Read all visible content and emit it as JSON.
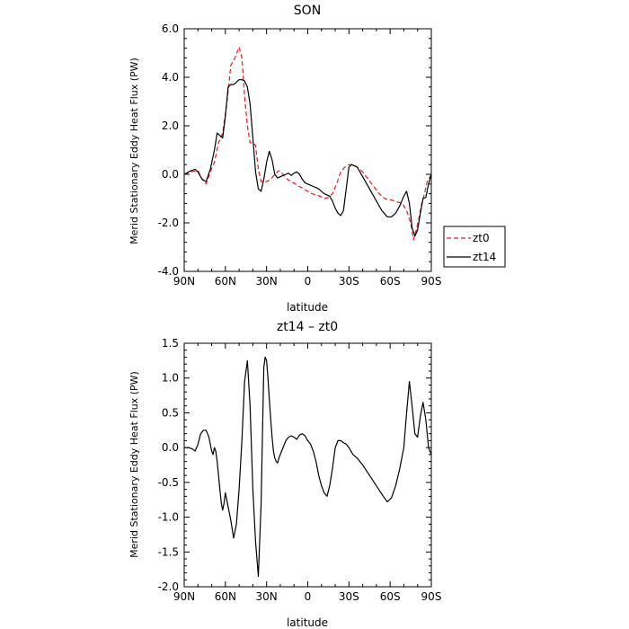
{
  "colors": {
    "zt0": "#e41a1c",
    "zt14": "#000000",
    "frame": "#000000"
  },
  "chart_data": [
    {
      "type": "line",
      "title": "SON",
      "xlabel": "latitude",
      "ylabel": "Merid Stationary Eddy Heat Flux (PW)",
      "xlim": [
        90,
        -90
      ],
      "ylim": [
        -4,
        6
      ],
      "xticks": [
        90,
        60,
        30,
        0,
        -30,
        -60,
        -90
      ],
      "xtick_labels": [
        "90N",
        "60N",
        "30N",
        "0",
        "30S",
        "60S",
        "90S"
      ],
      "yticks": [
        -4,
        -2,
        0,
        2,
        4,
        6
      ],
      "ytick_labels": [
        "-4.0",
        "-2.0",
        "0.0",
        "2.0",
        "4.0",
        "6.0"
      ],
      "legend": {
        "position": "right",
        "entries": [
          "zt0",
          "zt14"
        ]
      },
      "series": [
        {
          "name": "zt0",
          "style": "dashed",
          "x": [
            90,
            85,
            80,
            77,
            74,
            71,
            68,
            65,
            62,
            59,
            56,
            53,
            50,
            48,
            46,
            44,
            42,
            40,
            38,
            36,
            34,
            32,
            30,
            27,
            24,
            21,
            18,
            15,
            12,
            9,
            6,
            3,
            0,
            -3,
            -6,
            -9,
            -12,
            -15,
            -18,
            -21,
            -24,
            -27,
            -30,
            -33,
            -36,
            -40,
            -44,
            -48,
            -52,
            -56,
            -60,
            -63,
            -66,
            -69,
            -72,
            -75,
            -77,
            -79,
            -81,
            -83,
            -85,
            -87,
            -90
          ],
          "values": [
            0.0,
            0.1,
            0.15,
            -0.2,
            -0.4,
            0.1,
            0.5,
            1.3,
            1.7,
            2.9,
            4.5,
            4.8,
            5.25,
            4.8,
            3.2,
            2.0,
            1.3,
            1.3,
            1.2,
            0.2,
            -0.3,
            -0.3,
            -0.3,
            -0.2,
            0.0,
            0.15,
            0.0,
            -0.2,
            -0.3,
            -0.4,
            -0.5,
            -0.6,
            -0.7,
            -0.8,
            -0.85,
            -0.9,
            -1.0,
            -0.95,
            -0.8,
            -0.4,
            0.1,
            0.3,
            0.4,
            0.4,
            0.3,
            0.1,
            -0.2,
            -0.5,
            -0.8,
            -1.0,
            -1.05,
            -1.1,
            -1.15,
            -1.2,
            -1.5,
            -2.0,
            -2.7,
            -2.3,
            -1.8,
            -1.2,
            -0.8,
            -0.3,
            0.0
          ]
        },
        {
          "name": "zt14",
          "style": "solid",
          "x": [
            90,
            85,
            82,
            80,
            77,
            74,
            71,
            68,
            66,
            64,
            62,
            60,
            58,
            56,
            54,
            52,
            50,
            48,
            46,
            44,
            42,
            40,
            38,
            36,
            34,
            32,
            30,
            28,
            26,
            24,
            22,
            20,
            18,
            16,
            14,
            12,
            10,
            8,
            6,
            4,
            2,
            0,
            -2,
            -4,
            -6,
            -8,
            -10,
            -12,
            -14,
            -16,
            -18,
            -20,
            -22,
            -24,
            -26,
            -28,
            -30,
            -32,
            -34,
            -36,
            -38,
            -42,
            -46,
            -50,
            -54,
            -58,
            -61,
            -64,
            -67,
            -70,
            -72,
            -74,
            -76,
            -78,
            -80,
            -82,
            -84,
            -86,
            -88,
            -90
          ],
          "values": [
            0.0,
            0.15,
            0.2,
            0.1,
            -0.2,
            -0.3,
            0.2,
            1.0,
            1.7,
            1.6,
            1.5,
            2.4,
            3.6,
            3.7,
            3.7,
            3.8,
            3.9,
            3.9,
            3.85,
            3.6,
            2.9,
            1.5,
            0.1,
            -0.6,
            -0.7,
            -0.2,
            0.5,
            0.95,
            0.6,
            0.0,
            -0.15,
            -0.1,
            -0.05,
            0.0,
            0.05,
            -0.05,
            0.05,
            0.1,
            0.0,
            -0.2,
            -0.35,
            -0.4,
            -0.45,
            -0.5,
            -0.55,
            -0.6,
            -0.7,
            -0.8,
            -0.85,
            -0.9,
            -1.1,
            -1.4,
            -1.6,
            -1.7,
            -1.5,
            -0.6,
            0.3,
            0.4,
            0.35,
            0.3,
            0.1,
            -0.3,
            -0.7,
            -1.1,
            -1.5,
            -1.75,
            -1.75,
            -1.6,
            -1.3,
            -0.9,
            -0.7,
            -1.2,
            -2.2,
            -2.55,
            -2.3,
            -1.6,
            -1.0,
            -0.95,
            -0.4,
            0.0
          ]
        }
      ]
    },
    {
      "type": "line",
      "title": "zt14 – zt0",
      "xlabel": "latitude",
      "ylabel": "Merid Stationary Eddy Heat Flux (PW)",
      "xlim": [
        90,
        -90
      ],
      "ylim": [
        -2,
        1.5
      ],
      "xticks": [
        90,
        60,
        30,
        0,
        -30,
        -60,
        -90
      ],
      "xtick_labels": [
        "90N",
        "60N",
        "30N",
        "0",
        "30S",
        "60S",
        "90S"
      ],
      "yticks": [
        -2.0,
        -1.5,
        -1.0,
        -0.5,
        0.0,
        0.5,
        1.0,
        1.5
      ],
      "ytick_labels": [
        "-2.0",
        "-1.5",
        "-1.0",
        "-0.5",
        "0.0",
        "0.5",
        "1.0",
        "1.5"
      ],
      "series": [
        {
          "style": "solid",
          "x": [
            90,
            87,
            84,
            82,
            80,
            78,
            76,
            74,
            72,
            70,
            69,
            68,
            67,
            66,
            65,
            64,
            63,
            62,
            61,
            60,
            58,
            56,
            54,
            52,
            50,
            48,
            46,
            44,
            42,
            40,
            38,
            36,
            34,
            33,
            32,
            31,
            30,
            29,
            28,
            27,
            26,
            25,
            24,
            23,
            22,
            21,
            20,
            18,
            16,
            14,
            12,
            10,
            8,
            6,
            4,
            2,
            0,
            -2,
            -4,
            -6,
            -8,
            -10,
            -12,
            -14,
            -16,
            -18,
            -20,
            -22,
            -24,
            -26,
            -28,
            -30,
            -33,
            -36,
            -40,
            -45,
            -50,
            -55,
            -58,
            -61,
            -64,
            -67,
            -70,
            -72,
            -74,
            -76,
            -78,
            -80,
            -82,
            -84,
            -86,
            -88,
            -90
          ],
          "values": [
            0.0,
            0.0,
            -0.02,
            -0.05,
            0.05,
            0.2,
            0.25,
            0.25,
            0.15,
            -0.05,
            -0.1,
            0.0,
            -0.05,
            -0.2,
            -0.4,
            -0.6,
            -0.8,
            -0.9,
            -0.8,
            -0.65,
            -0.85,
            -1.05,
            -1.3,
            -1.1,
            -0.6,
            0.1,
            0.95,
            1.25,
            0.6,
            -0.6,
            -1.35,
            -1.85,
            -0.8,
            0.2,
            1.15,
            1.3,
            1.25,
            1.0,
            0.7,
            0.4,
            0.15,
            -0.05,
            -0.15,
            -0.2,
            -0.22,
            -0.15,
            -0.1,
            0.0,
            0.1,
            0.15,
            0.17,
            0.15,
            0.12,
            0.18,
            0.2,
            0.17,
            0.1,
            0.05,
            -0.05,
            -0.2,
            -0.4,
            -0.55,
            -0.65,
            -0.7,
            -0.55,
            -0.3,
            0.0,
            0.1,
            0.1,
            0.07,
            0.05,
            0.0,
            -0.1,
            -0.15,
            -0.25,
            -0.4,
            -0.55,
            -0.7,
            -0.78,
            -0.72,
            -0.55,
            -0.3,
            0.0,
            0.5,
            0.95,
            0.6,
            0.2,
            0.15,
            0.45,
            0.65,
            0.4,
            0.0,
            -0.1
          ]
        }
      ]
    }
  ]
}
